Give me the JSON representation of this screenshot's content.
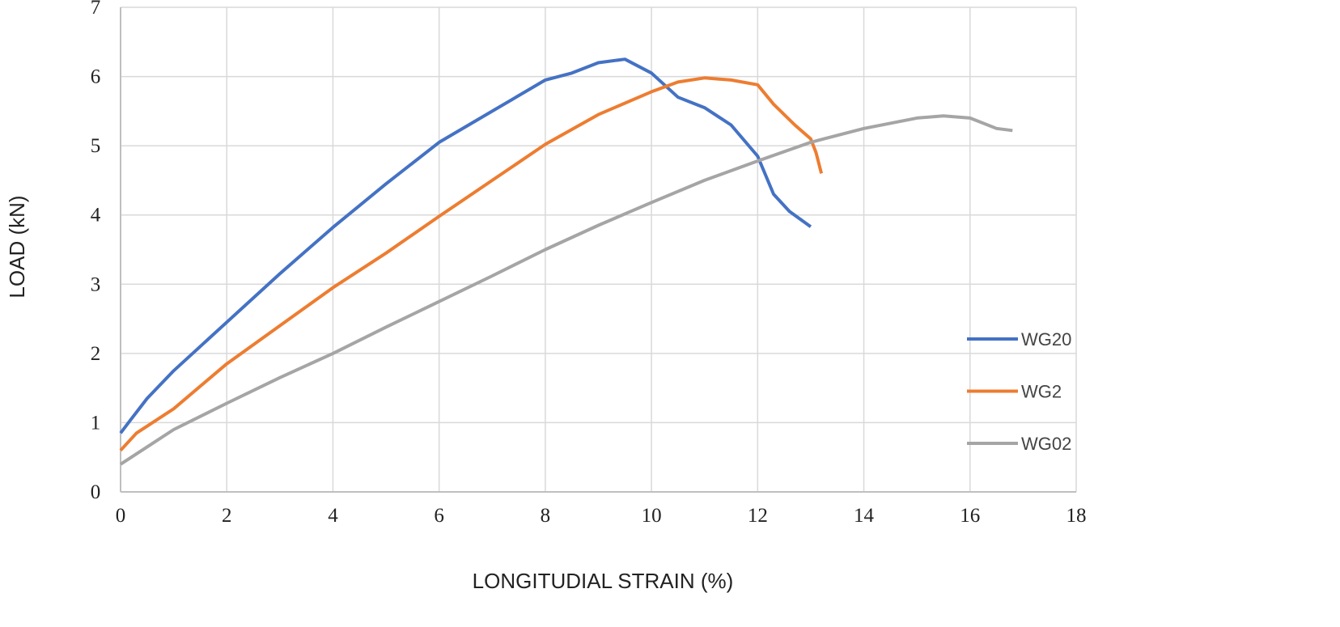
{
  "chart_data": {
    "type": "line",
    "title": "",
    "xlabel": "LONGITUDIAL STRAIN (%)",
    "ylabel": "LOAD (kN)",
    "xlim": [
      0,
      18
    ],
    "ylim": [
      0,
      7
    ],
    "xticks": [
      0,
      2,
      4,
      6,
      8,
      10,
      12,
      14,
      16,
      18
    ],
    "yticks": [
      0,
      1,
      2,
      3,
      4,
      5,
      6,
      7
    ],
    "grid": true,
    "legend_position": "right",
    "series": [
      {
        "name": "WG20",
        "color": "#4472C4",
        "x": [
          0,
          0.2,
          0.5,
          1,
          1.5,
          2,
          3,
          4,
          5,
          6,
          7,
          8,
          8.5,
          9,
          9.5,
          10,
          10.5,
          11,
          11.5,
          12,
          12.3,
          12.6,
          13
        ],
        "y": [
          0.85,
          1.05,
          1.35,
          1.75,
          2.1,
          2.45,
          3.15,
          3.82,
          4.45,
          5.05,
          5.5,
          5.95,
          6.05,
          6.2,
          6.25,
          6.05,
          5.7,
          5.55,
          5.3,
          4.85,
          4.3,
          4.05,
          3.83
        ]
      },
      {
        "name": "WG2",
        "color": "#ED7D31",
        "x": [
          0,
          0.3,
          1,
          2,
          3,
          4,
          5,
          6,
          7,
          8,
          9,
          10,
          10.5,
          11,
          11.5,
          12,
          12.3,
          12.7,
          13,
          13.1,
          13.2
        ],
        "y": [
          0.6,
          0.85,
          1.2,
          1.85,
          2.4,
          2.95,
          3.45,
          3.98,
          4.5,
          5.02,
          5.45,
          5.78,
          5.92,
          5.98,
          5.95,
          5.88,
          5.6,
          5.3,
          5.1,
          4.9,
          4.6
        ]
      },
      {
        "name": "WG02",
        "color": "#A5A5A5",
        "x": [
          0,
          0.5,
          1,
          2,
          3,
          4,
          5,
          6,
          7,
          8,
          9,
          10,
          11,
          12,
          13,
          14,
          15,
          15.5,
          16,
          16.5,
          16.8
        ],
        "y": [
          0.4,
          0.65,
          0.9,
          1.28,
          1.65,
          2.0,
          2.38,
          2.75,
          3.12,
          3.5,
          3.85,
          4.18,
          4.5,
          4.78,
          5.05,
          5.25,
          5.4,
          5.43,
          5.4,
          5.25,
          5.22
        ]
      }
    ]
  }
}
